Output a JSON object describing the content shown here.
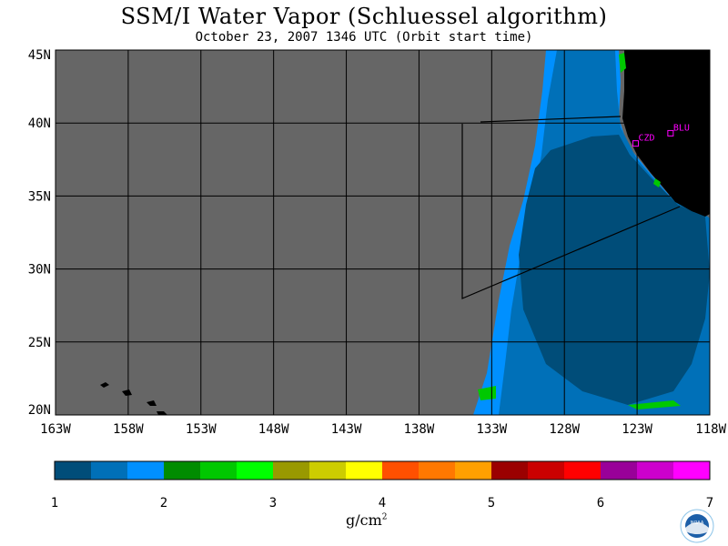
{
  "title": "SSM/I Water Vapor (Schluessel algorithm)",
  "subtitle": "October 23, 2007  1346 UTC  (Orbit start time)",
  "map": {
    "lat_labels": [
      "45N",
      "40N",
      "35N",
      "30N",
      "25N",
      "20N"
    ],
    "lat_values": [
      45,
      40,
      35,
      30,
      25,
      20
    ],
    "lon_labels": [
      "163W",
      "158W",
      "153W",
      "148W",
      "143W",
      "138W",
      "133W",
      "128W",
      "123W",
      "118W"
    ],
    "lon_values": [
      -163,
      -158,
      -153,
      -148,
      -143,
      -138,
      -133,
      -128,
      -123,
      -118
    ],
    "lon_range": [
      -163,
      -118
    ],
    "lat_range": [
      20,
      45
    ],
    "colors": {
      "no_data": "#666666",
      "land": "#000000",
      "grid": "#000000",
      "marker": "#ff00ff"
    },
    "stations": [
      {
        "label": "CZD",
        "lon": -123.1,
        "lat": 38.6
      },
      {
        "label": "BLU",
        "lon": -120.7,
        "lat": 39.3
      }
    ]
  },
  "colorbar": {
    "tick_labels": [
      "1",
      "2",
      "3",
      "4",
      "5",
      "6",
      "7"
    ],
    "min": 1,
    "max": 7,
    "colors": [
      "#004d79",
      "#0070b8",
      "#0090ff",
      "#008c00",
      "#00c800",
      "#00ff00",
      "#999900",
      "#cccc00",
      "#ffff00",
      "#ff5000",
      "#ff7800",
      "#ffa000",
      "#9b0000",
      "#cb0000",
      "#ff0000",
      "#990099",
      "#cc00cc",
      "#ff00ff"
    ],
    "unit": "g/cm",
    "unit_exp": "2"
  },
  "logo": {
    "left_letters": "ESRL",
    "right_letters": "PSD",
    "center_text": "NOAA"
  }
}
